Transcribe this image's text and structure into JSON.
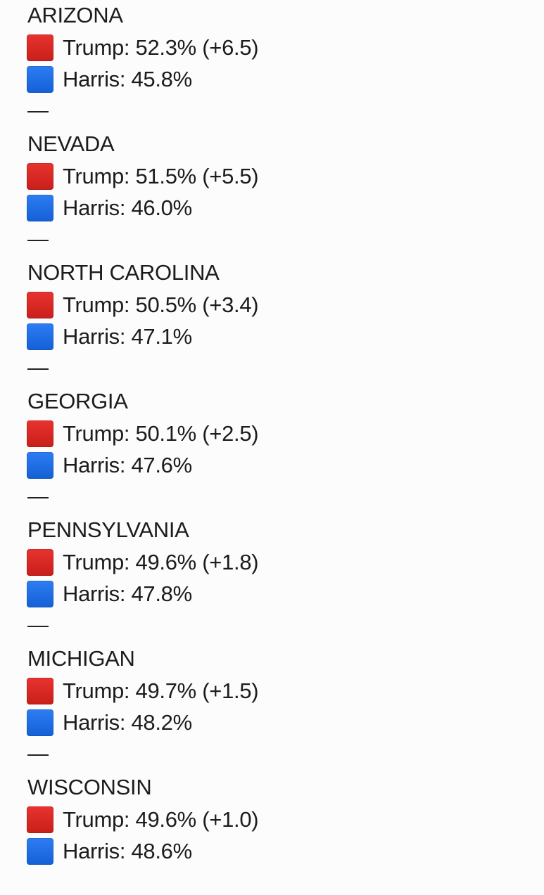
{
  "states": [
    {
      "name": "ARIZONA",
      "trump": "Trump: 52.3% (+6.5)",
      "harris": "Harris: 45.8%",
      "divider": "—"
    },
    {
      "name": "NEVADA",
      "trump": "Trump: 51.5% (+5.5)",
      "harris": "Harris: 46.0%",
      "divider": "—"
    },
    {
      "name": "NORTH CAROLINA",
      "trump": "Trump: 50.5% (+3.4)",
      "harris": "Harris: 47.1%",
      "divider": "—"
    },
    {
      "name": "GEORGIA",
      "trump": "Trump: 50.1% (+2.5)",
      "harris": "Harris: 47.6%",
      "divider": "—"
    },
    {
      "name": "PENNSYLVANIA",
      "trump": "Trump: 49.6% (+1.8)",
      "harris": "Harris: 47.8%",
      "divider": "—"
    },
    {
      "name": "MICHIGAN",
      "trump": "Trump: 49.7% (+1.5)",
      "harris": "Harris: 48.2%",
      "divider": "—"
    },
    {
      "name": "WISCONSIN",
      "trump": "Trump: 49.6% (+1.0)",
      "harris": "Harris: 48.6%"
    }
  ],
  "colors": {
    "trump_square": "#d8281f",
    "harris_square": "#1f6fe5"
  },
  "icons": {
    "trump": "red-square-icon",
    "harris": "blue-square-icon"
  }
}
